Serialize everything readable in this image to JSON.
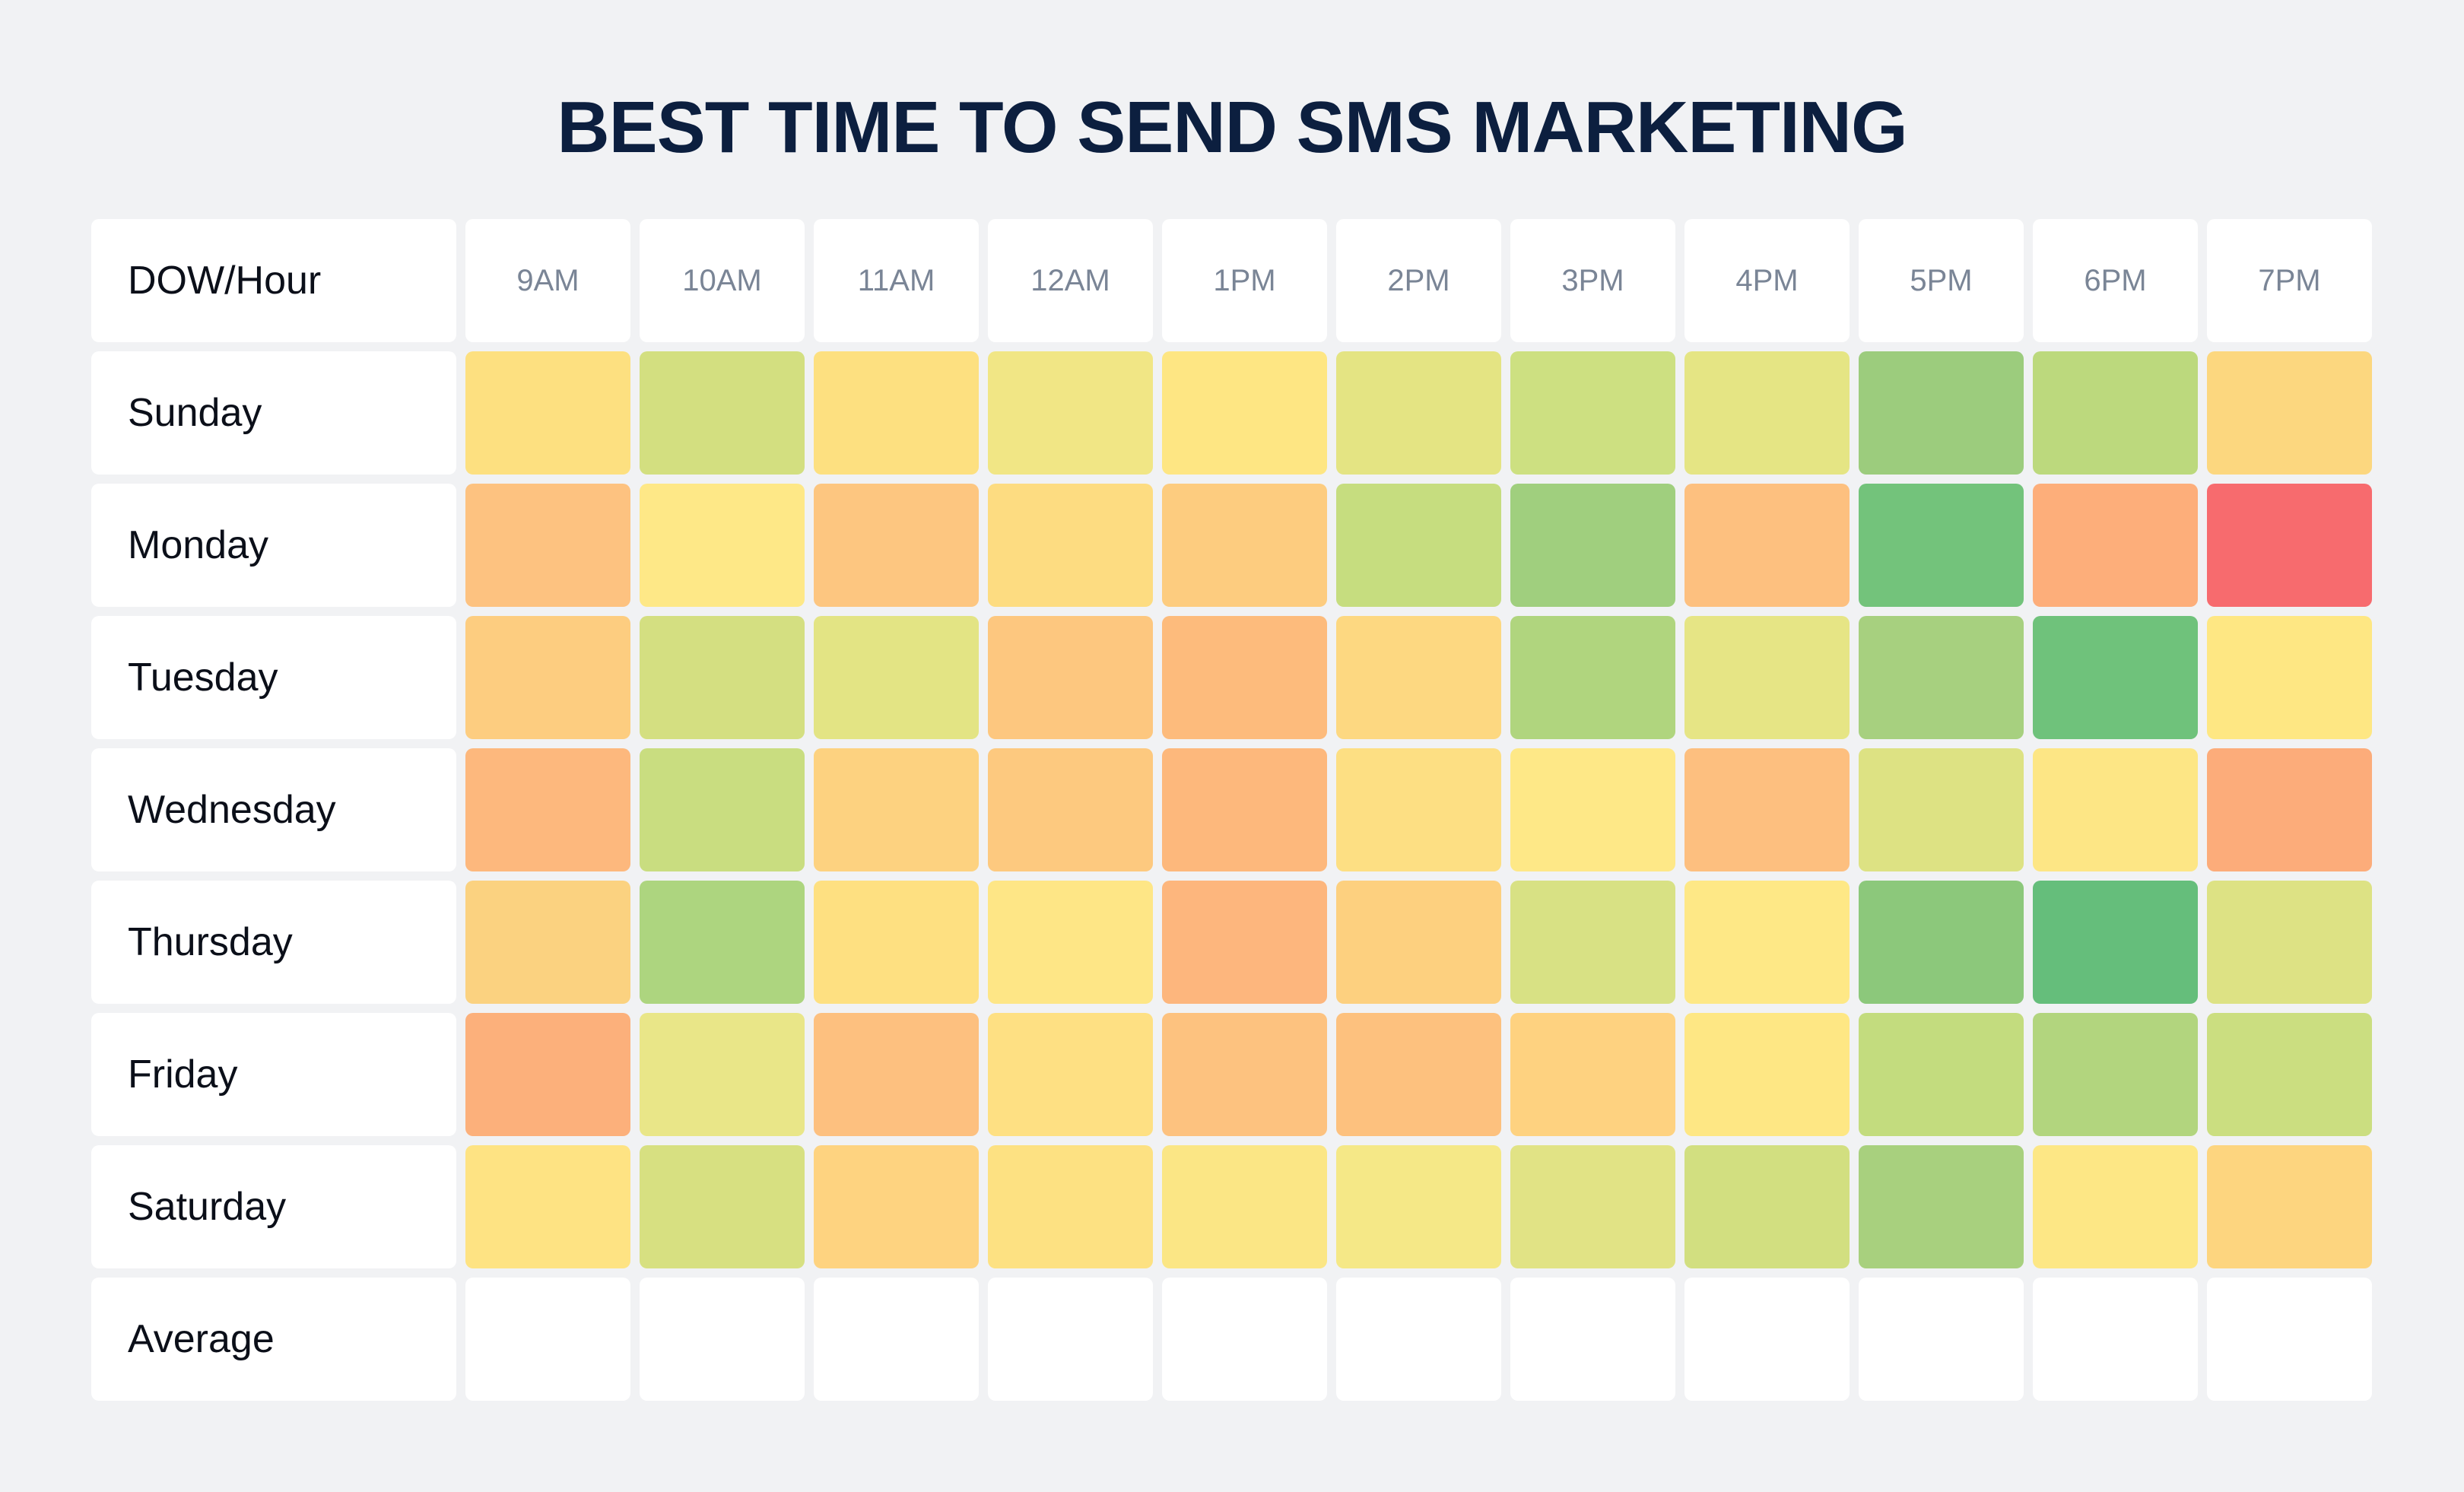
{
  "title": "BEST TIME TO SEND SMS MARKETING",
  "corner_label": "DOW/Hour",
  "chart_data": {
    "type": "heatmap",
    "title": "BEST TIME TO SEND SMS MARKETING",
    "x_categories": [
      "9AM",
      "10AM",
      "11AM",
      "12AM",
      "1PM",
      "2PM",
      "3PM",
      "4PM",
      "5PM",
      "6PM",
      "7PM"
    ],
    "y_categories": [
      "Sunday",
      "Monday",
      "Tuesday",
      "Wednesday",
      "Thursday",
      "Friday",
      "Saturday"
    ],
    "summary_row_label": "Average",
    "color_scale": {
      "low": "#f76b6e",
      "mid_low": "#fdb27e",
      "mid": "#fee887",
      "mid_high": "#c7dd7f",
      "high": "#62bd7b"
    },
    "cell_colors": [
      [
        "#fde080",
        "#d3df80",
        "#fde080",
        "#f1e685",
        "#fee683",
        "#e4e483",
        "#cde081",
        "#e5e584",
        "#9ccc7d",
        "#bcd97d",
        "#fcd77f"
      ],
      [
        "#fdc280",
        "#fee887",
        "#fdc680",
        "#fddc81",
        "#fdcc7f",
        "#c6dd7f",
        "#a0cf7e",
        "#fdc07f",
        "#73c37b",
        "#fdae7a",
        "#f76b6e"
      ],
      [
        "#fdcd80",
        "#d4df81",
        "#e3e484",
        "#fdc77f",
        "#fdbb7c",
        "#fdd881",
        "#b0d57e",
        "#e6e585",
        "#a7d07f",
        "#6fc27b",
        "#fee783"
      ],
      [
        "#fdb87d",
        "#c9dd80",
        "#fdd280",
        "#fdc97f",
        "#fdb87c",
        "#fddf83",
        "#fee887",
        "#fdbf7f",
        "#dde283",
        "#fde685",
        "#fcac7a"
      ],
      [
        "#fbd280",
        "#add57f",
        "#fee081",
        "#fee686",
        "#fdb67d",
        "#fdd07f",
        "#d8e184",
        "#fee886",
        "#8cc87b",
        "#65be7b",
        "#dde284"
      ],
      [
        "#fcb07b",
        "#e9e688",
        "#fdc07f",
        "#fee083",
        "#fdc27f",
        "#fdc17e",
        "#fed280",
        "#fee784",
        "#c3dc7e",
        "#b2d57e",
        "#cbde80"
      ],
      [
        "#fee383",
        "#d7e081",
        "#fed380",
        "#fde182",
        "#fbe685",
        "#f5e887",
        "#e1e385",
        "#d2df80",
        "#a8d07e",
        "#fde785",
        "#fdd57f"
      ]
    ]
  }
}
